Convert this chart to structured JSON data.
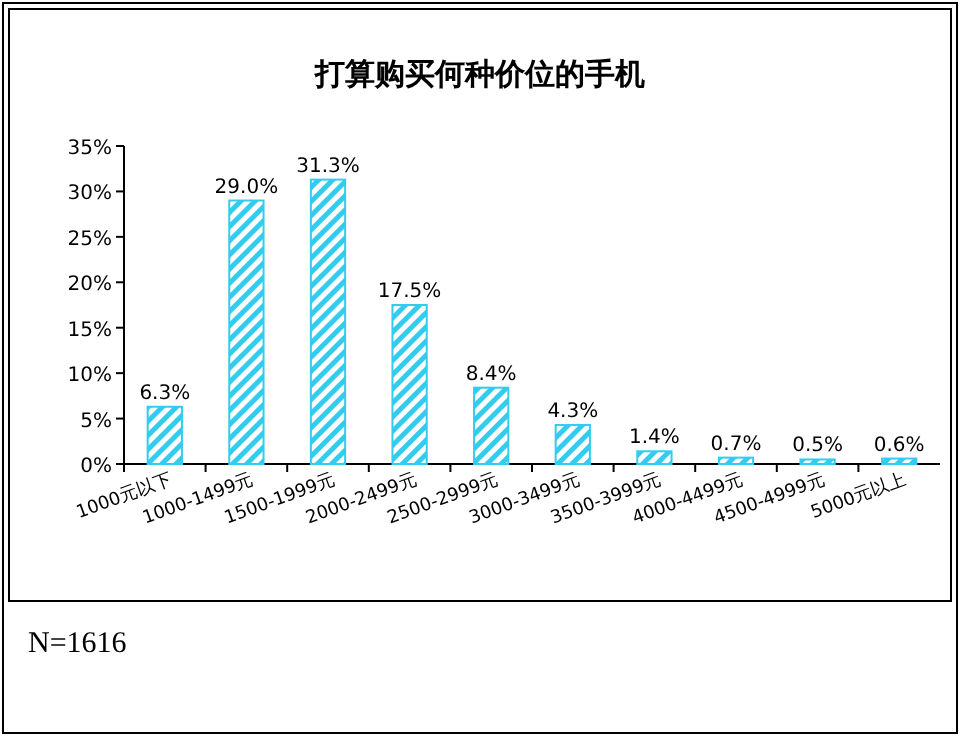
{
  "chart_data": {
    "type": "bar",
    "title": "打算购买何种价位的手机",
    "categories": [
      "1000元以下",
      "1000-1499元",
      "1500-1999元",
      "2000-2499元",
      "2500-2999元",
      "3000-3499元",
      "3500-3999元",
      "4000-4499元",
      "4500-4999元",
      "5000元以上"
    ],
    "values": [
      6.3,
      29.0,
      31.3,
      17.5,
      8.4,
      4.3,
      1.4,
      0.7,
      0.5,
      0.6
    ],
    "value_labels": [
      "6.3%",
      "29.0%",
      "31.3%",
      "17.5%",
      "8.4%",
      "4.3%",
      "1.4%",
      "0.7%",
      "0.5%",
      "0.6%"
    ],
    "color": "#33ccee",
    "ylim": [
      0,
      35
    ],
    "yticks": [
      {
        "value": 0,
        "label": "0%"
      },
      {
        "value": 5,
        "label": "5%"
      },
      {
        "value": 10,
        "label": "10%"
      },
      {
        "value": 15,
        "label": "15%"
      },
      {
        "value": 20,
        "label": "20%"
      },
      {
        "value": 25,
        "label": "25%"
      },
      {
        "value": 30,
        "label": "30%"
      },
      {
        "value": 35,
        "label": "35%"
      }
    ],
    "grid": false,
    "annotations": [
      "N=1616"
    ]
  }
}
